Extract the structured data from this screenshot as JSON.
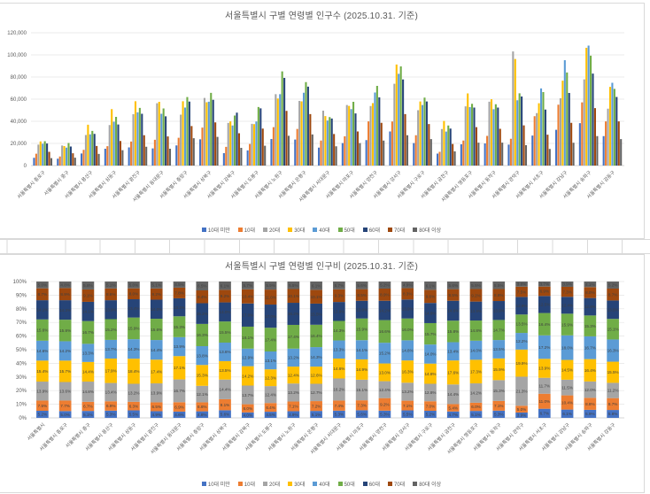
{
  "worksheet": {
    "background": "#ffffff",
    "gridline_color": "#d9d9d9"
  },
  "palette": {
    "axis_text": "#595959",
    "title_text": "#595959",
    "data_label_text": "#404040",
    "gridline": "#e5e5e5",
    "axis_line": "#c6c6c6"
  },
  "chart_data": [
    {
      "type": "bar",
      "title": "서울특별시 구별 연령별 인구수 (2025.10.31. 기준)",
      "xlabel": "",
      "ylabel": "",
      "ylim": [
        0,
        120000
      ],
      "ytick_step": 20000,
      "ytick_format": "comma",
      "grid": true,
      "legend_position": "bottom",
      "categories": [
        "서울특별시 종로구",
        "서울특별시 중구",
        "서울특별시 용산구",
        "서울특별시 성동구",
        "서울특별시 광진구",
        "서울특별시 동대문구",
        "서울특별시 중랑구",
        "서울특별시 성북구",
        "서울특별시 강북구",
        "서울특별시 도봉구",
        "서울특별시 노원구",
        "서울특별시 은평구",
        "서울특별시 서대문구",
        "서울특별시 마포구",
        "서울특별시 양천구",
        "서울특별시 강서구",
        "서울특별시 구로구",
        "서울특별시 금천구",
        "서울특별시 영등포구",
        "서울특별시 동작구",
        "서울특별시 관악구",
        "서울특별시 서초구",
        "서울특별시 강남구",
        "서울특별시 송파구",
        "서울특별시 강동구"
      ],
      "series": [
        {
          "name": "10대 미만",
          "color": "#4472C4",
          "values": [
            7000,
            6200,
            10900,
            15200,
            16400,
            15500,
            18200,
            23700,
            11200,
            13700,
            24000,
            23500,
            16200,
            20300,
            23000,
            30800,
            20300,
            10800,
            19200,
            20000,
            18900,
            27100,
            32300,
            38300,
            26600
          ]
        },
        {
          "name": "10대",
          "color": "#ED7D31",
          "values": [
            10700,
            8200,
            14200,
            17500,
            21700,
            23300,
            25100,
            34300,
            16900,
            19500,
            34700,
            33100,
            22600,
            26400,
            39900,
            39800,
            27400,
            12400,
            22600,
            26800,
            24200,
            44600,
            55000,
            57100,
            39900
          ]
        },
        {
          "name": "20대",
          "color": "#A5A5A5",
          "values": [
            18900,
            18100,
            27600,
            36600,
            46400,
            56300,
            46000,
            61100,
            38500,
            37700,
            64500,
            58400,
            49600,
            54700,
            53800,
            73900,
            50000,
            33000,
            53500,
            57700,
            103100,
            47400,
            60800,
            77900,
            51400
          ]
        },
        {
          "name": "30대",
          "color": "#FFC000",
          "values": [
            21800,
            17600,
            36900,
            51000,
            58100,
            57600,
            58100,
            57200,
            39900,
            37400,
            60600,
            58000,
            44700,
            53900,
            56400,
            91300,
            57900,
            40300,
            65200,
            59900,
            96300,
            56300,
            76700,
            106400,
            71100
          ]
        },
        {
          "name": "40대",
          "color": "#5B9BD5",
          "values": [
            19700,
            16200,
            28200,
            39600,
            48100,
            46800,
            52400,
            57700,
            36200,
            39800,
            64500,
            65800,
            40700,
            51000,
            66000,
            82900,
            54700,
            30700,
            52800,
            50900,
            59000,
            69700,
            95200,
            108400,
            74800
          ]
        },
        {
          "name": "50대",
          "color": "#70AD47",
          "values": [
            22000,
            20400,
            31300,
            44000,
            52100,
            51600,
            61900,
            65700,
            45200,
            52900,
            85100,
            75400,
            43800,
            57600,
            72000,
            89600,
            61400,
            36200,
            55800,
            55400,
            65300,
            66400,
            84100,
            99300,
            69300
          ]
        },
        {
          "name": "60대",
          "color": "#264478",
          "values": [
            19900,
            17200,
            28600,
            37100,
            46800,
            44500,
            57800,
            59400,
            47800,
            51700,
            79200,
            71300,
            42500,
            47100,
            61600,
            77800,
            57900,
            33400,
            52400,
            52400,
            62400,
            50600,
            65600,
            83100,
            62000
          ]
        },
        {
          "name": "70대",
          "color": "#9E480E",
          "values": [
            12400,
            11100,
            17700,
            22200,
            27400,
            26300,
            35700,
            39000,
            29200,
            33400,
            49400,
            46500,
            28500,
            30800,
            38600,
            46500,
            37500,
            19500,
            34700,
            33200,
            36300,
            27900,
            38600,
            51900,
            39900
          ]
        },
        {
          "name": "80대 이상",
          "color": "#636363",
          "values": [
            6700,
            7100,
            10500,
            13900,
            17000,
            15200,
            24700,
            25900,
            16000,
            17900,
            26900,
            28100,
            17400,
            20300,
            22600,
            27400,
            23900,
            12800,
            20700,
            20700,
            18400,
            15000,
            20600,
            26600,
            23900
          ]
        }
      ]
    },
    {
      "type": "stacked-bar-100",
      "title": "서울특별시 구별 연령별 인구비 (2025.10.31. 기준)",
      "xlabel": "",
      "ylabel": "",
      "ylim": [
        0,
        100
      ],
      "ytick_step": 10,
      "ytick_format": "percent",
      "grid": true,
      "legend_position": "bottom",
      "data_labels": true,
      "data_label_format": "0.0%",
      "categories": [
        "서울특별시",
        "서울특별시 종로구",
        "서울특별시 중구",
        "서울특별시 용산구",
        "서울특별시 성동구",
        "서울특별시 광진구",
        "서울특별시 동대문구",
        "서울특별시 중랑구",
        "서울특별시 성북구",
        "서울특별시 강북구",
        "서울특별시 도봉구",
        "서울특별시 노원구",
        "서울특별시 은평구",
        "서울특별시 서대문구",
        "서울특별시 마포구",
        "서울특별시 양천구",
        "서울특별시 강서구",
        "서울특별시 구로구",
        "서울특별시 금천구",
        "서울특별시 영등포구",
        "서울특별시 동작구",
        "서울특별시 관악구",
        "서울특별시 서초구",
        "서울특별시 강남구",
        "서울특별시 송파구",
        "서울특별시 강동구"
      ],
      "series": [
        {
          "name": "10대 미만",
          "color": "#4472C4",
          "values": [
            5.2,
            5.0,
            5.1,
            5.3,
            5.5,
            4.9,
            4.6,
            4.8,
            5.6,
            4.0,
            4.5,
            4.9,
            5.1,
            5.3,
            5.6,
            5.3,
            5.5,
            5.2,
            4.7,
            5.1,
            5.3,
            3.9,
            6.7,
            6.1,
            5.9,
            5.8
          ]
        },
        {
          "name": "10대",
          "color": "#ED7D31",
          "values": [
            7.5,
            7.7,
            6.7,
            6.9,
            6.3,
            6.5,
            6.9,
            6.6,
            8.1,
            6.0,
            6.4,
            7.1,
            7.2,
            7.4,
            7.3,
            9.2,
            7.1,
            7.0,
            5.4,
            6.0,
            7.1,
            5.0,
            11.0,
            10.4,
            8.8,
            8.7
          ]
        },
        {
          "name": "20대",
          "color": "#A5A5A5",
          "values": [
            13.9,
            13.6,
            14.8,
            13.4,
            13.2,
            13.9,
            16.7,
            12.1,
            14.4,
            13.7,
            12.4,
            13.2,
            12.7,
            16.2,
            15.1,
            12.4,
            13.2,
            12.8,
            14.4,
            14.2,
            15.3,
            21.3,
            11.7,
            11.5,
            12.0,
            11.2
          ]
        },
        {
          "name": "30대",
          "color": "#FFC000",
          "values": [
            15.4,
            15.7,
            14.4,
            17.9,
            18.4,
            17.4,
            17.1,
            15.3,
            13.5,
            14.2,
            12.3,
            12.4,
            12.6,
            14.6,
            14.9,
            13.0,
            16.3,
            14.8,
            17.6,
            17.3,
            15.9,
            19.9,
            13.9,
            14.5,
            16.4,
            15.5
          ]
        },
        {
          "name": "40대",
          "color": "#5B9BD5",
          "values": [
            14.6,
            14.2,
            13.3,
            13.7,
            14.3,
            14.4,
            13.9,
            13.8,
            13.6,
            12.9,
            13.1,
            13.2,
            14.3,
            13.3,
            14.1,
            15.2,
            14.8,
            14.0,
            13.4,
            14.0,
            13.5,
            12.2,
            17.2,
            18.0,
            16.7,
            16.3
          ]
        },
        {
          "name": "50대",
          "color": "#70AD47",
          "values": [
            15.6,
            15.8,
            16.7,
            15.2,
            15.9,
            15.6,
            15.3,
            16.3,
            15.5,
            16.1,
            17.4,
            17.4,
            16.4,
            14.3,
            15.9,
            16.6,
            16.0,
            15.7,
            15.8,
            14.8,
            14.7,
            13.5,
            16.4,
            15.9,
            15.3,
            15.1
          ]
        },
        {
          "name": "60대",
          "color": "#264478",
          "values": [
            14.1,
            14.3,
            14.1,
            13.9,
            13.4,
            14.0,
            13.2,
            15.2,
            14.0,
            17.0,
            17.0,
            16.2,
            15.5,
            13.9,
            13.0,
            14.2,
            13.9,
            14.8,
            14.6,
            13.9,
            13.9,
            12.9,
            12.5,
            12.4,
            12.8,
            13.5
          ]
        },
        {
          "name": "70대",
          "color": "#9E480E",
          "values": [
            8.7,
            8.9,
            9.1,
            8.6,
            8.0,
            8.2,
            7.8,
            9.4,
            9.2,
            10.4,
            11.0,
            10.1,
            10.1,
            9.3,
            8.5,
            8.9,
            8.3,
            9.6,
            8.5,
            9.2,
            8.8,
            7.5,
            6.9,
            7.3,
            8.0,
            8.7
          ]
        },
        {
          "name": "80대 이상",
          "color": "#636363",
          "values": [
            5.0,
            4.8,
            5.8,
            5.1,
            5.0,
            5.1,
            4.5,
            6.5,
            6.1,
            5.7,
            5.9,
            5.5,
            6.1,
            5.7,
            5.6,
            5.2,
            4.9,
            6.1,
            5.6,
            5.5,
            5.5,
            3.8,
            3.7,
            3.9,
            4.1,
            5.2
          ]
        }
      ]
    }
  ]
}
